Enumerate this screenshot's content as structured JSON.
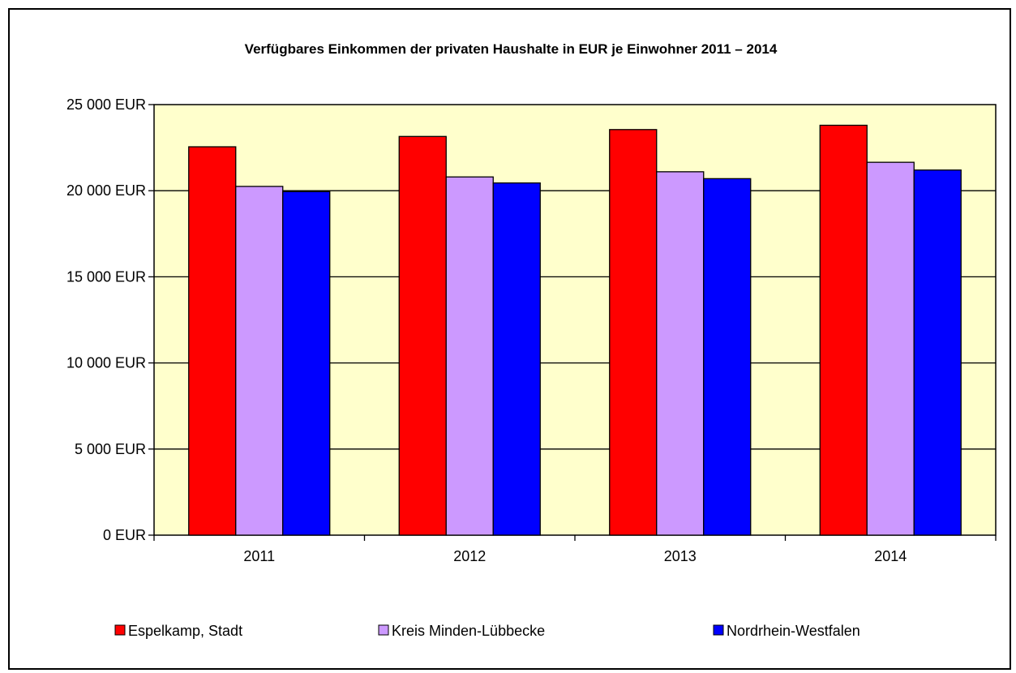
{
  "chart_data": {
    "type": "bar",
    "title": "Verfügbares Einkommen der privaten Haushalte in EUR je Einwohner 2011 – 2014",
    "xlabel": "",
    "ylabel": "",
    "categories": [
      "2011",
      "2012",
      "2013",
      "2014"
    ],
    "series": [
      {
        "name": "Espelkamp, Stadt",
        "color": "#ff0000",
        "values": [
          22550,
          23150,
          23550,
          23800
        ]
      },
      {
        "name": "Kreis Minden-Lübbecke",
        "color": "#cc99ff",
        "values": [
          20250,
          20800,
          21100,
          21650
        ]
      },
      {
        "name": "Nordrhein-Westfalen",
        "color": "#0000ff",
        "values": [
          19950,
          20450,
          20700,
          21200
        ]
      }
    ],
    "ylim": [
      0,
      25000
    ],
    "yticks": [
      0,
      5000,
      10000,
      15000,
      20000,
      25000
    ],
    "ytick_labels": [
      "0 EUR",
      "5 000 EUR",
      "10 000 EUR",
      "15 000 EUR",
      "20 000 EUR",
      "25 000 EUR"
    ],
    "grid": true,
    "legend_position": "bottom",
    "plot_background": "#ffffcc"
  }
}
